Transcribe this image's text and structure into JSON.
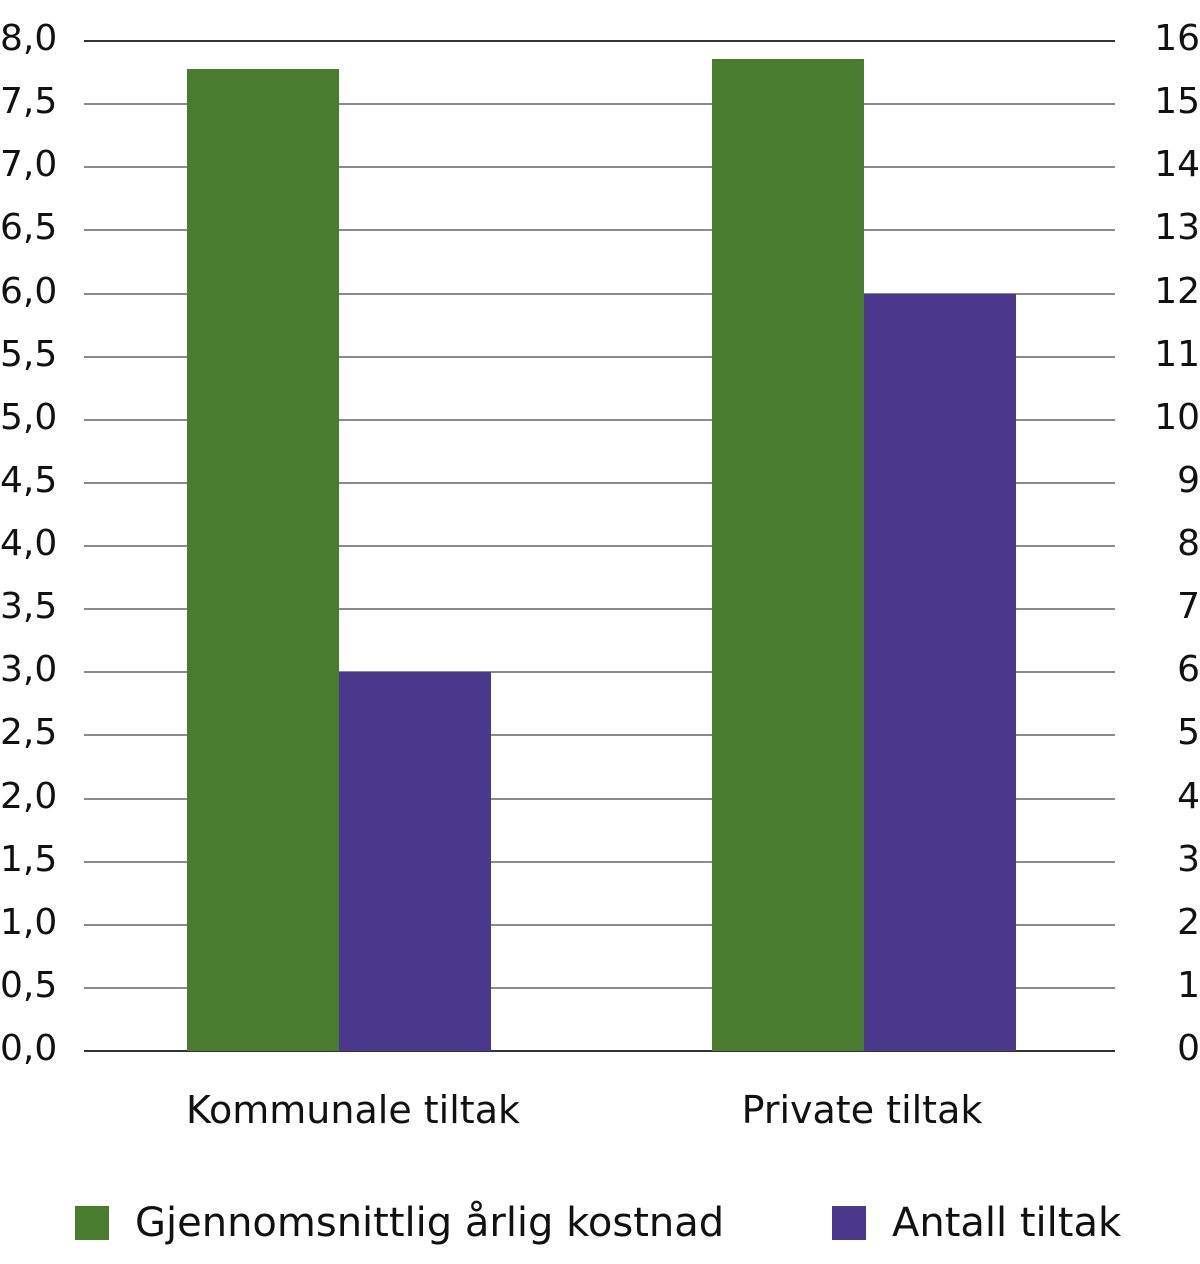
{
  "chart_data": {
    "type": "bar",
    "title": "",
    "categories": [
      "Kommunale tiltak",
      "Private tiltak"
    ],
    "series": [
      {
        "name": "Gjennomsnittlig årlig kostnad",
        "axis": "left",
        "color": "#4a7c2f",
        "values": [
          7.78,
          7.86
        ]
      },
      {
        "name": "Antall tiltak",
        "axis": "right",
        "color": "#4b378c",
        "values": [
          6,
          12
        ]
      }
    ],
    "xlabel": "",
    "ylabel": "",
    "ylim": [
      0,
      8
    ],
    "y2lim": [
      0,
      16
    ],
    "left_ticks": [
      "0,0",
      "0,5",
      "1,0",
      "1,5",
      "2,0",
      "2,5",
      "3,0",
      "3,5",
      "4,0",
      "4,5",
      "5,0",
      "5,5",
      "6,0",
      "6,5",
      "7,0",
      "7,5",
      "8,0"
    ],
    "right_ticks": [
      "0",
      "1",
      "2",
      "3",
      "4",
      "5",
      "6",
      "7",
      "8",
      "9",
      "10",
      "11",
      "12",
      "13",
      "14",
      "15",
      "16"
    ],
    "grid": true,
    "legend_position": "bottom"
  }
}
